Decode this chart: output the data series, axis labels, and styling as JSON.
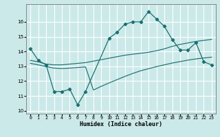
{
  "xlabel": "Humidex (Indice chaleur)",
  "xlim": [
    -0.5,
    23.5
  ],
  "ylim": [
    9.8,
    17.2
  ],
  "yticks": [
    10,
    11,
    12,
    13,
    14,
    15,
    16
  ],
  "xticks": [
    0,
    1,
    2,
    3,
    4,
    5,
    6,
    7,
    8,
    9,
    10,
    11,
    12,
    13,
    14,
    15,
    16,
    17,
    18,
    19,
    20,
    21,
    22,
    23
  ],
  "bg_color": "#cce9e9",
  "line_color": "#1a7070",
  "grid_color": "#ffffff",
  "main_line_x": [
    0,
    1,
    2,
    3,
    4,
    5,
    6,
    7,
    10,
    11,
    12,
    13,
    14,
    15,
    16,
    17,
    18,
    19,
    20,
    21,
    22,
    23
  ],
  "main_line_y": [
    14.2,
    13.4,
    13.1,
    11.3,
    11.3,
    11.45,
    10.4,
    11.3,
    14.9,
    15.3,
    15.85,
    16.0,
    16.0,
    16.7,
    16.2,
    15.7,
    14.8,
    14.1,
    14.1,
    14.6,
    13.3,
    13.1
  ],
  "upper_band_x": [
    0,
    1,
    2,
    3,
    4,
    5,
    6,
    7,
    8,
    9,
    10,
    11,
    12,
    13,
    14,
    15,
    16,
    17,
    18,
    19,
    20,
    21,
    22,
    23
  ],
  "upper_band_y": [
    13.4,
    13.3,
    13.15,
    13.1,
    13.1,
    13.15,
    13.2,
    13.25,
    13.35,
    13.45,
    13.55,
    13.65,
    13.75,
    13.82,
    13.88,
    13.95,
    14.05,
    14.18,
    14.35,
    14.48,
    14.58,
    14.68,
    14.75,
    14.82
  ],
  "lower_band_x": [
    0,
    1,
    2,
    3,
    4,
    5,
    6,
    7,
    8,
    9,
    10,
    11,
    12,
    13,
    14,
    15,
    16,
    17,
    18,
    19,
    20,
    21,
    22,
    23
  ],
  "lower_band_y": [
    13.2,
    13.1,
    12.98,
    12.88,
    12.85,
    12.88,
    12.92,
    12.96,
    11.4,
    11.65,
    11.88,
    12.1,
    12.32,
    12.52,
    12.7,
    12.84,
    12.98,
    13.1,
    13.22,
    13.32,
    13.42,
    13.5,
    13.56,
    13.62
  ]
}
